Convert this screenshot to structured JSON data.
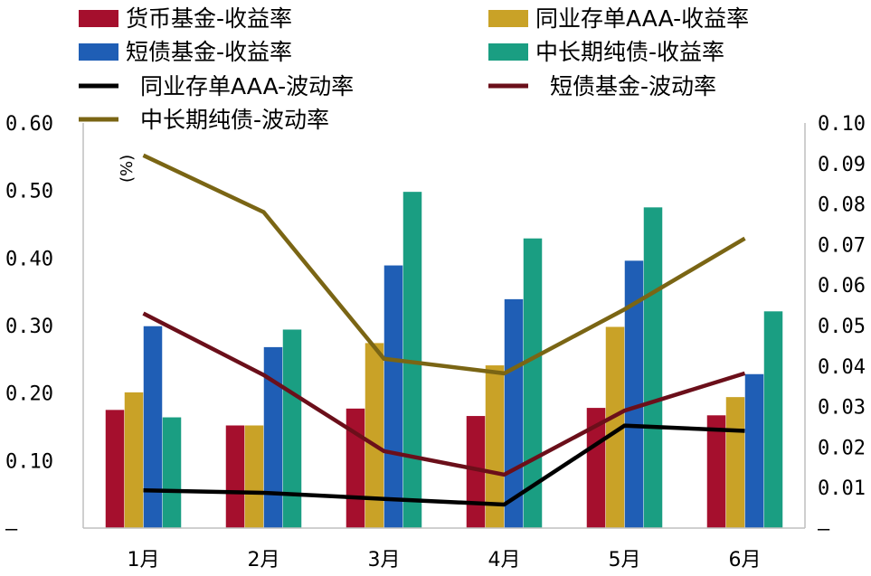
{
  "chart_data": {
    "type": "bar",
    "categories": [
      "1月",
      "2月",
      "3月",
      "4月",
      "5月",
      "6月"
    ],
    "bar_series": [
      {
        "name": "货币基金-收益率",
        "color": "#a50f2d",
        "values": [
          0.175,
          0.152,
          0.177,
          0.166,
          0.178,
          0.167
        ]
      },
      {
        "name": "同业存单AAA-收益率",
        "color": "#c9a227",
        "values": [
          0.201,
          0.152,
          0.274,
          0.241,
          0.298,
          0.194
        ]
      },
      {
        "name": "短债基金-收益率",
        "color": "#1f5eb5",
        "values": [
          0.299,
          0.268,
          0.389,
          0.339,
          0.396,
          0.228
        ]
      },
      {
        "name": "中长期纯债-收益率",
        "color": "#1a9e82",
        "values": [
          0.164,
          0.294,
          0.498,
          0.429,
          0.475,
          0.321
        ]
      }
    ],
    "line_series": [
      {
        "name": "同业存单AAA-波动率",
        "color": "#000000",
        "axis": "right",
        "values": [
          0.0093,
          0.0087,
          0.0072,
          0.0058,
          0.0253,
          0.024
        ]
      },
      {
        "name": "短债基金-波动率",
        "color": "#6b0f1a",
        "axis": "right",
        "values": [
          0.053,
          0.0378,
          0.019,
          0.0132,
          0.029,
          0.0382
        ]
      },
      {
        "name": "中长期纯债-波动率",
        "color": "#7a6514",
        "axis": "right",
        "values": [
          0.092,
          0.078,
          0.0418,
          0.0382,
          0.054,
          0.0715
        ]
      }
    ],
    "left_axis": {
      "ticks": [
        "0.60",
        "0.50",
        "0.40",
        "0.30",
        "0.20",
        "0.10",
        "–"
      ],
      "ylim": [
        0,
        0.6
      ]
    },
    "right_axis": {
      "ticks": [
        "0.10",
        "0.09",
        "0.08",
        "0.07",
        "0.06",
        "0.05",
        "0.04",
        "0.03",
        "0.02",
        "0.01",
        "–"
      ],
      "ylim": [
        0,
        0.1
      ]
    },
    "unit_label": "(%)",
    "legend": [
      {
        "label": "货币基金-收益率",
        "kind": "bar",
        "color": "#a50f2d"
      },
      {
        "label": "同业存单AAA-收益率",
        "kind": "bar",
        "color": "#c9a227"
      },
      {
        "label": "短债基金-收益率",
        "kind": "bar",
        "color": "#1f5eb5"
      },
      {
        "label": "中长期纯债-收益率",
        "kind": "bar",
        "color": "#1a9e82"
      },
      {
        "label": "同业存单AAA-波动率",
        "kind": "line",
        "color": "#000000"
      },
      {
        "label": "短债基金-波动率",
        "kind": "line",
        "color": "#6b0f1a"
      },
      {
        "label": "中长期纯债-波动率",
        "kind": "line",
        "color": "#7a6514"
      }
    ]
  }
}
